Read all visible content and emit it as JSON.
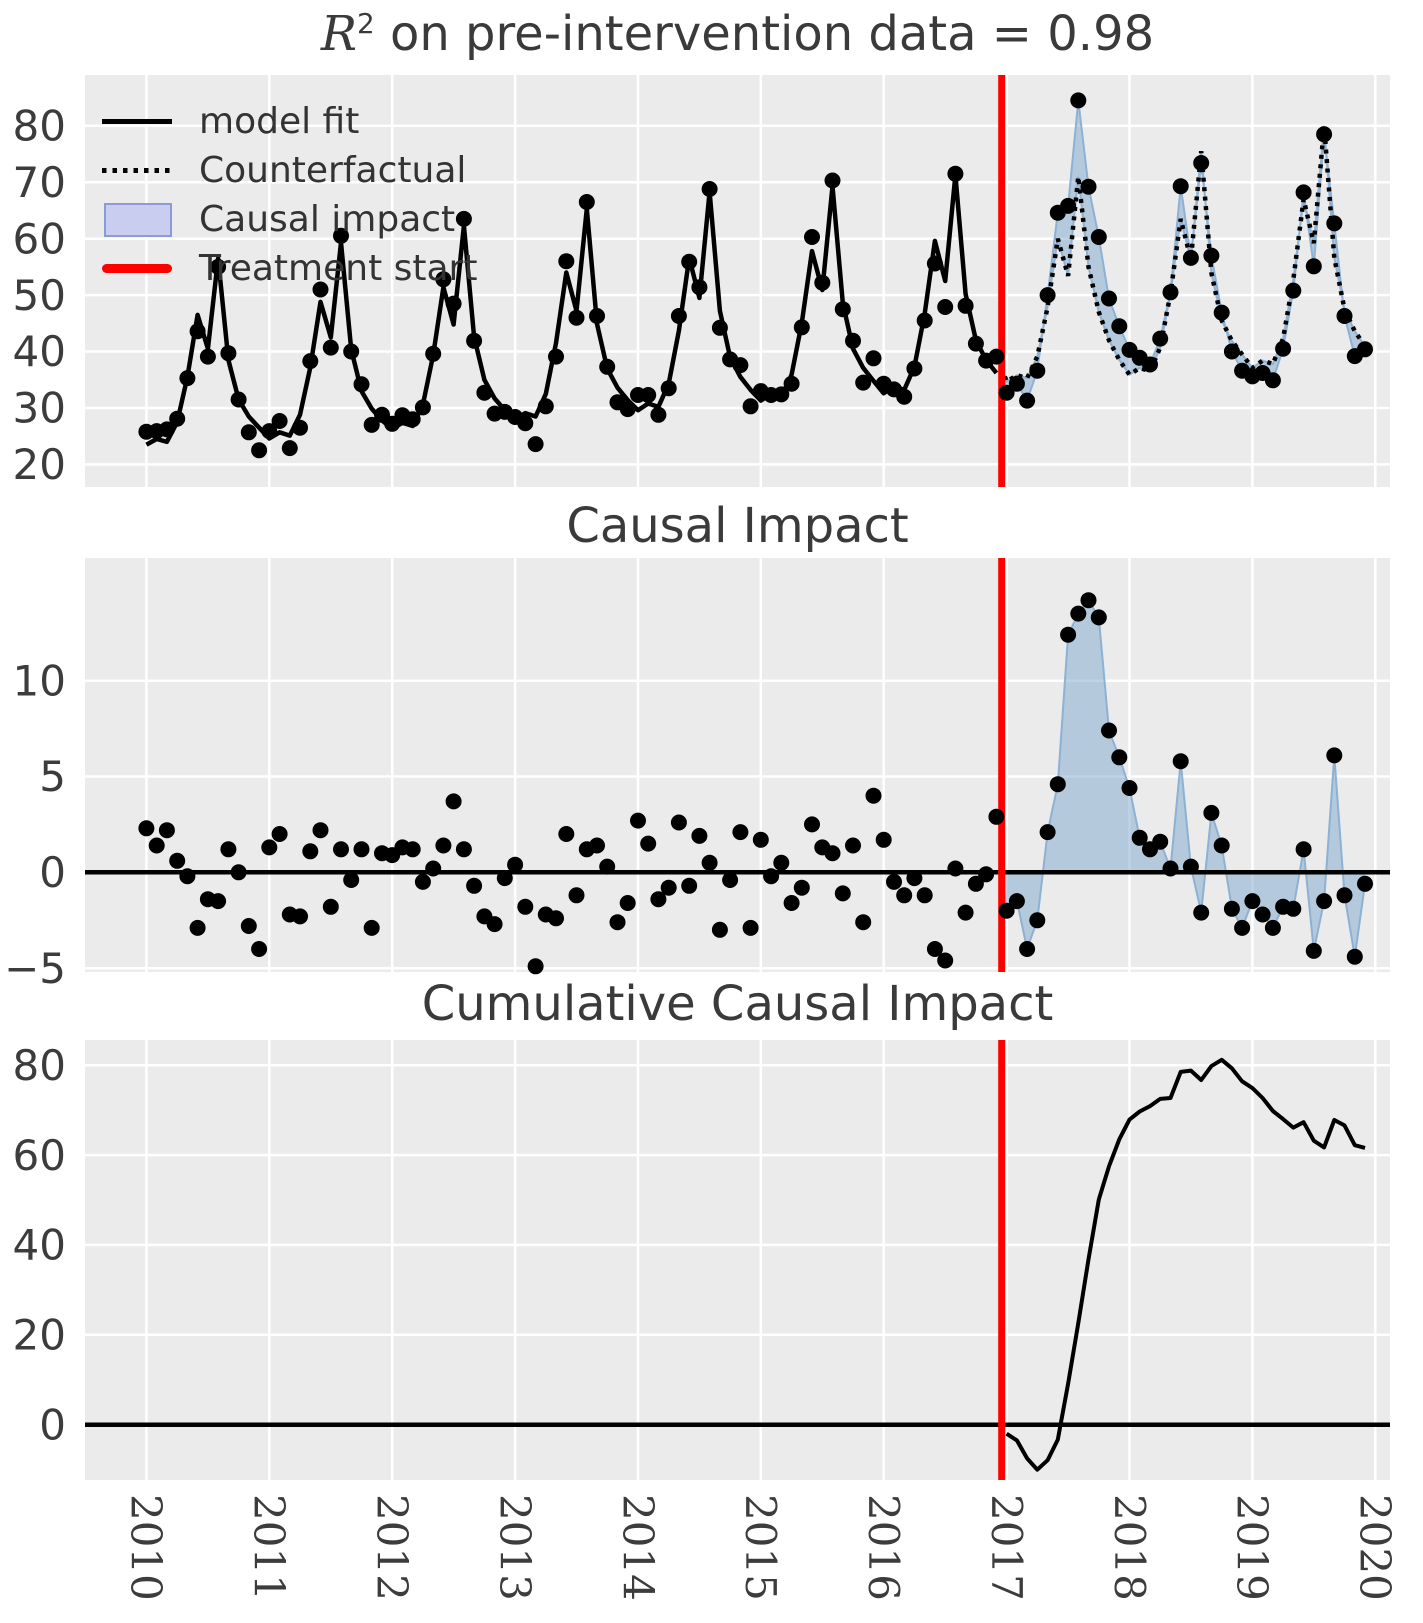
{
  "chart_data": {
    "type": "line",
    "x_start_year": 2010,
    "points_per_year": 12,
    "x_tick_years": [
      2010,
      2011,
      2012,
      2013,
      2014,
      2015,
      2016,
      2017,
      2018,
      2019,
      2020
    ],
    "treatment_start": 2016.96,
    "colors": {
      "figure_bg": "#ffffff",
      "panel_bg": "#ebebeb",
      "grid": "#ffffff",
      "line": "#000000",
      "treatment_red": "#ff0000",
      "impact_fill": "#7da7cd",
      "impact_edge": "#85add2",
      "legend_patch_fill": "#c9cdf0",
      "legend_patch_edge": "#8e99d8",
      "text": "#3a3a3a"
    },
    "charts": [
      {
        "id": "model-fit",
        "title_math": "R",
        "title_sup": "2",
        "title_rest": " on pre-intervention data = 0.98",
        "yticks": [
          20,
          30,
          40,
          50,
          60,
          70,
          80
        ],
        "ylim": [
          16,
          89
        ],
        "boundary_value": 37.2,
        "legend": [
          {
            "label": "model fit",
            "sample": "solid-black-line"
          },
          {
            "label": "Counterfactual",
            "sample": "dotted-black-line"
          },
          {
            "label": "Causal impact",
            "sample": "lavender-patch"
          },
          {
            "label": "Treatment start",
            "sample": "red-line"
          }
        ],
        "series": {
          "observed": [
            25.8,
            25.9,
            26.2,
            28.1,
            35.3,
            43.6,
            39.1,
            55.0,
            39.7,
            31.5,
            25.7,
            22.5,
            25.9,
            27.7,
            22.9,
            26.5,
            38.3,
            51.0,
            40.7,
            60.5,
            40.0,
            34.2,
            27.0,
            28.8,
            27.2,
            28.7,
            28.0,
            30.1,
            39.6,
            52.8,
            48.5,
            63.5,
            41.9,
            32.7,
            29.0,
            29.3,
            28.4,
            27.3,
            23.6,
            30.3,
            39.1,
            56.0,
            46.0,
            66.5,
            46.3,
            37.3,
            31.0,
            29.8,
            32.3,
            32.3,
            28.8,
            33.5,
            46.3,
            55.9,
            51.4,
            68.8,
            44.2,
            38.6,
            37.6,
            30.3,
            33.0,
            32.3,
            32.4,
            34.3,
            44.3,
            60.3,
            52.2,
            70.3,
            47.5,
            41.9,
            34.5,
            38.8,
            34.3,
            33.3,
            32.0,
            37.0,
            45.5,
            55.6,
            47.9,
            71.5,
            48.1,
            41.4,
            38.4,
            39.1,
            32.7,
            34.3,
            31.3,
            36.6,
            50.0,
            64.6,
            65.8,
            84.5,
            69.2,
            60.3,
            49.4,
            44.5,
            40.3,
            38.9,
            37.7,
            42.3,
            50.5,
            69.3,
            56.6,
            73.4,
            57.0,
            46.9,
            40.0,
            36.6,
            35.6,
            36.2,
            34.9,
            40.5,
            50.8,
            68.2,
            55.1,
            78.5,
            62.7,
            46.3,
            39.2,
            40.4
          ],
          "model_fit_pre": [
            23.5,
            24.5,
            24.0,
            27.5,
            35.5,
            46.5,
            40.5,
            56.5,
            38.5,
            31.5,
            28.5,
            26.5,
            24.6,
            25.7,
            25.1,
            28.8,
            37.2,
            48.8,
            42.5,
            59.3,
            40.4,
            33.0,
            29.9,
            27.8,
            26.3,
            27.4,
            26.8,
            30.6,
            39.4,
            51.4,
            44.8,
            62.3,
            42.6,
            35.0,
            31.7,
            29.6,
            28.0,
            29.1,
            28.5,
            32.5,
            41.5,
            54.0,
            47.2,
            65.3,
            44.9,
            37.0,
            33.6,
            31.4,
            29.6,
            30.8,
            30.2,
            34.3,
            43.7,
            56.6,
            49.5,
            68.3,
            47.2,
            39.0,
            35.5,
            33.2,
            31.3,
            32.5,
            31.9,
            35.9,
            45.1,
            57.8,
            50.9,
            69.3,
            48.6,
            40.5,
            37.1,
            34.8,
            32.6,
            33.8,
            33.2,
            37.3,
            46.7,
            59.6,
            52.5,
            71.3,
            50.2,
            42.0,
            38.5,
            36.2
          ],
          "counterfactual_post": [
            34.7,
            35.8,
            35.3,
            39.1,
            47.9,
            60.0,
            53.4,
            71.0,
            55.0,
            47.0,
            42.0,
            38.5,
            35.9,
            37.1,
            36.5,
            40.7,
            50.3,
            63.5,
            56.3,
            75.5,
            53.9,
            45.5,
            41.9,
            39.5,
            37.1,
            38.4,
            37.8,
            42.3,
            52.7,
            67.0,
            59.2,
            80.0,
            56.6,
            47.5,
            43.6,
            41.0
          ]
        }
      },
      {
        "id": "impact",
        "title": "Causal Impact",
        "yticks": [
          -5,
          0,
          5,
          10
        ],
        "ylim": [
          -5.2,
          16.4
        ],
        "boundary_value": 0,
        "series": {
          "impact": [
            2.3,
            1.4,
            2.2,
            0.6,
            -0.2,
            -2.9,
            -1.4,
            -1.5,
            1.2,
            0.0,
            -2.8,
            -4.0,
            1.3,
            2.0,
            -2.2,
            -2.3,
            1.1,
            2.2,
            -1.8,
            1.2,
            -0.4,
            1.2,
            -2.9,
            1.0,
            0.9,
            1.3,
            1.2,
            -0.5,
            0.2,
            1.4,
            3.7,
            1.2,
            -0.7,
            -2.3,
            -2.7,
            -0.3,
            0.4,
            -1.8,
            -4.9,
            -2.2,
            -2.4,
            2.0,
            -1.2,
            1.2,
            1.4,
            0.3,
            -2.6,
            -1.6,
            2.7,
            1.5,
            -1.4,
            -0.8,
            2.6,
            -0.7,
            1.9,
            0.5,
            -3.0,
            -0.4,
            2.1,
            -2.9,
            1.7,
            -0.2,
            0.5,
            -1.6,
            -0.8,
            2.5,
            1.3,
            1.0,
            -1.1,
            1.4,
            -2.6,
            4.0,
            1.7,
            -0.5,
            -1.2,
            -0.3,
            -1.2,
            -4.0,
            -4.6,
            0.2,
            -2.1,
            -0.6,
            -0.1,
            2.9,
            -2.0,
            -1.5,
            -4.0,
            -2.5,
            2.1,
            4.6,
            12.4,
            13.5,
            14.2,
            13.3,
            7.4,
            6.0,
            4.4,
            1.8,
            1.2,
            1.6,
            0.2,
            5.8,
            0.3,
            -2.1,
            3.1,
            1.4,
            -1.9,
            -2.9,
            -1.5,
            -2.2,
            -2.9,
            -1.8,
            -1.9,
            1.2,
            -4.1,
            -1.5,
            6.1,
            -1.2,
            -4.4,
            -0.6
          ]
        }
      },
      {
        "id": "cumulative",
        "title": "Cumulative Causal Impact",
        "yticks": [
          0,
          20,
          40,
          60,
          80
        ],
        "ylim": [
          -12.3,
          85.6
        ],
        "series": {
          "cumulative_post": [
            -2.0,
            -3.5,
            -7.5,
            -10.0,
            -7.9,
            -3.3,
            9.1,
            22.6,
            36.8,
            50.1,
            57.5,
            63.5,
            67.9,
            69.7,
            70.9,
            72.5,
            72.7,
            78.5,
            78.8,
            76.7,
            79.8,
            81.2,
            79.3,
            76.4,
            74.9,
            72.7,
            69.8,
            68.0,
            66.1,
            67.3,
            63.2,
            61.7,
            67.8,
            66.6,
            62.2,
            61.6
          ]
        }
      }
    ]
  }
}
